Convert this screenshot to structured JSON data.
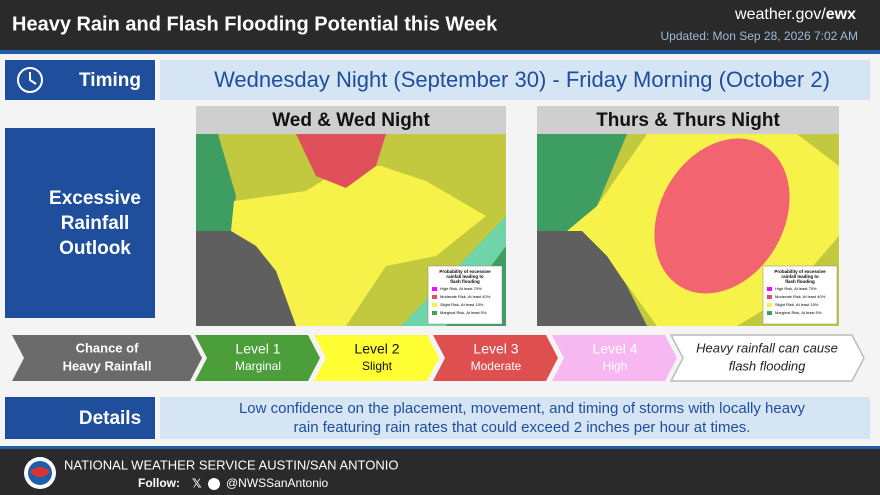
{
  "header": {
    "title": "Heavy Rain and Flash Flooding Potential this Week",
    "site": "weather.gov/",
    "office": "ewx",
    "updated": "Updated: Mon Sep 28, 2026 7:02 AM"
  },
  "timing": {
    "label": "Timing",
    "text": "Wednesday Night (September 30) - Friday Morning (October 2)"
  },
  "outlook": {
    "label": [
      "Excessive",
      "Rainfall",
      "Outlook"
    ],
    "maps": [
      {
        "title": "Wed & Wed Night"
      },
      {
        "title": "Thurs & Thurs Night"
      }
    ],
    "legend": {
      "title": [
        "Probability of excessive",
        "rainfall leading to",
        "flash flooding"
      ],
      "items": [
        "High Risk, At least 70%",
        "Moderate Risk, At least 40%",
        "Slight Risk, At least 15%",
        "Marginal Risk, At least 5%"
      ]
    }
  },
  "levels": {
    "intro": [
      "Chance of",
      "Heavy Rainfall"
    ],
    "items": [
      {
        "name": "Level 1",
        "desc": "Marginal"
      },
      {
        "name": "Level 2",
        "desc": "Slight"
      },
      {
        "name": "Level 3",
        "desc": "Moderate"
      },
      {
        "name": "Level 4",
        "desc": "High"
      }
    ],
    "outro": [
      "Heavy rainfall can cause",
      "flash flooding"
    ]
  },
  "details": {
    "label": "Details",
    "text": [
      "Low confidence on the placement, movement, and timing of storms with locally heavy",
      "rain featuring rain rates that could exceed 2 inches per hour at times."
    ]
  },
  "footer": {
    "org": "NATIONAL WEATHER SERVICE AUSTIN/SAN ANTONIO",
    "follow": "Follow:",
    "handle": "@NWSSanAntonio"
  }
}
